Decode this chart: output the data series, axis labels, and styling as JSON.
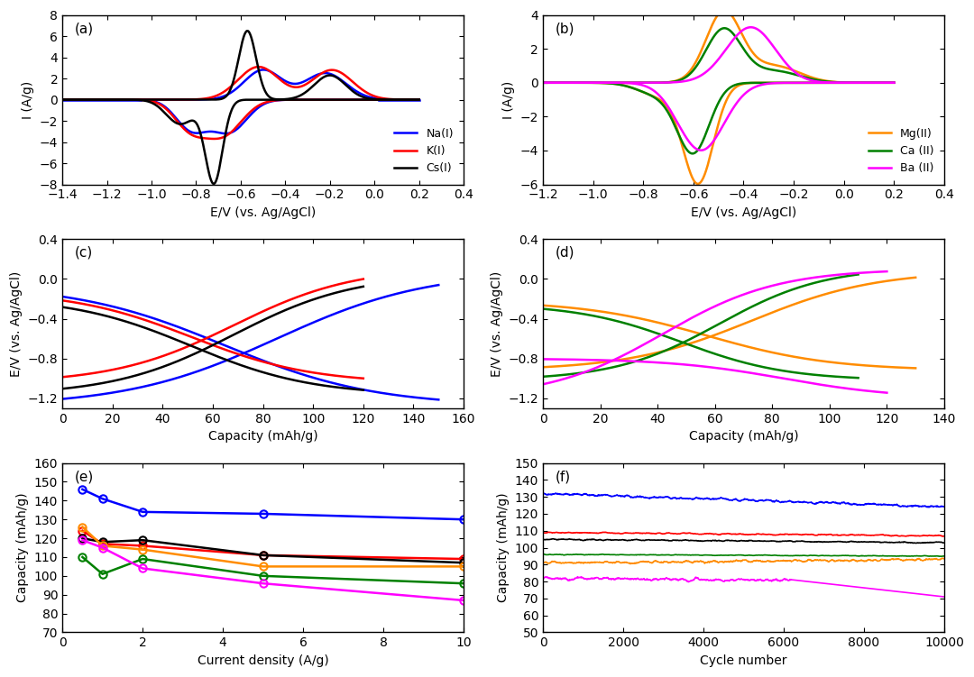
{
  "fig_width": 10.8,
  "fig_height": 7.51,
  "colors": {
    "Na": "#0000FF",
    "K": "#FF0000",
    "Cs": "#000000",
    "Mg": "#FF8C00",
    "Ca": "#008000",
    "Ba": "#FF00FF"
  },
  "panel_a": {
    "xlabel": "E/V (vs. Ag/AgCl)",
    "ylabel": "I (A/g)",
    "xlim": [
      -1.4,
      0.4
    ],
    "ylim": [
      -8,
      8
    ],
    "xticks": [
      -1.4,
      -1.2,
      -1.0,
      -0.8,
      -0.6,
      -0.4,
      -0.2,
      0.0,
      0.2,
      0.4
    ],
    "yticks": [
      -8,
      -6,
      -4,
      -2,
      0,
      2,
      4,
      6,
      8
    ]
  },
  "panel_b": {
    "xlabel": "E/V (vs. Ag/AgCl)",
    "ylabel": "I (A/g)",
    "xlim": [
      -1.2,
      0.4
    ],
    "ylim": [
      -6,
      4
    ],
    "xticks": [
      -1.2,
      -1.0,
      -0.8,
      -0.6,
      -0.4,
      -0.2,
      0.0,
      0.2,
      0.4
    ],
    "yticks": [
      -6,
      -4,
      -2,
      0,
      2,
      4
    ]
  },
  "panel_c": {
    "xlabel": "Capacity (mAh/g)",
    "ylabel": "E/V (vs. Ag/AgCl)",
    "xlim": [
      0,
      160
    ],
    "ylim": [
      -1.3,
      0.4
    ],
    "xticks": [
      0,
      20,
      40,
      60,
      80,
      100,
      120,
      140,
      160
    ],
    "yticks": [
      -1.2,
      -0.8,
      -0.4,
      0.0,
      0.4
    ]
  },
  "panel_d": {
    "xlabel": "Capacity (mAh/g)",
    "ylabel": "E/V (vs. Ag/AgCl)",
    "xlim": [
      0,
      140
    ],
    "ylim": [
      -1.3,
      0.4
    ],
    "xticks": [
      0,
      20,
      40,
      60,
      80,
      100,
      120,
      140
    ],
    "yticks": [
      -1.2,
      -0.8,
      -0.4,
      0.0,
      0.4
    ]
  },
  "panel_e": {
    "xlabel": "Current density (A/g)",
    "ylabel": "Capacity (mAh/g)",
    "xlim": [
      0,
      10
    ],
    "ylim": [
      70,
      160
    ],
    "xticks": [
      0,
      2,
      4,
      6,
      8,
      10
    ],
    "yticks": [
      70,
      80,
      90,
      100,
      110,
      120,
      130,
      140,
      150,
      160
    ]
  },
  "panel_f": {
    "xlabel": "Cycle number",
    "ylabel": "Capacity (mAh/g)",
    "xlim": [
      0,
      10000
    ],
    "ylim": [
      50,
      150
    ],
    "xticks": [
      0,
      2000,
      4000,
      6000,
      8000,
      10000
    ],
    "yticks": [
      50,
      60,
      70,
      80,
      90,
      100,
      110,
      120,
      130,
      140,
      150
    ]
  }
}
